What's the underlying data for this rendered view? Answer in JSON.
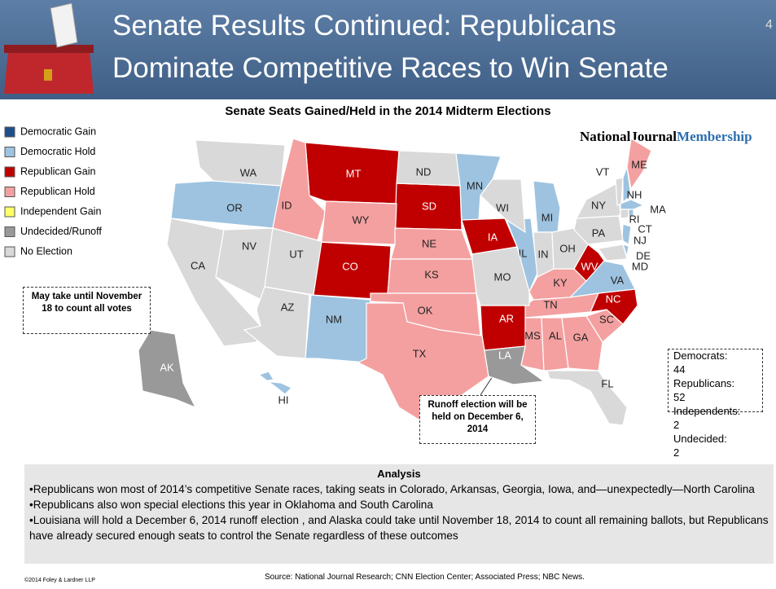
{
  "header": {
    "title_lines": [
      "Senate Results Continued: Republicans",
      "Dominate Competitive Races to Win Senate"
    ],
    "page_number": "4"
  },
  "map": {
    "title": "Senate Seats Gained/Held in the 2014 Midterm Elections",
    "logo": {
      "main": "NationalJournal",
      "accent": "Membership"
    },
    "legend": [
      {
        "name": "Democratic Gain",
        "color": "#1f4e8c",
        "states": []
      },
      {
        "name": "Democratic Hold",
        "color": "#9dc3e0",
        "states": [
          "OR",
          "MN",
          "MI",
          "IL",
          "NM",
          "VA",
          "NJ",
          "NH",
          "MA",
          "RI",
          "DE",
          "HI"
        ]
      },
      {
        "name": "Republican Gain",
        "color": "#c00000",
        "states": [
          "MT",
          "SD",
          "IA",
          "CO",
          "AR",
          "WV",
          "NC"
        ]
      },
      {
        "name": "Republican Hold",
        "color": "#f4a0a0",
        "states": [
          "ID",
          "WY",
          "NE",
          "KS",
          "OK",
          "TX",
          "KY",
          "TN",
          "MS",
          "AL",
          "GA",
          "SC",
          "ME"
        ]
      },
      {
        "name": "Independent Gain",
        "color": "#ffff66",
        "states": []
      },
      {
        "name": "Undecided/Runoff",
        "color": "#999999",
        "states": [
          "AK",
          "LA"
        ]
      },
      {
        "name": "No Election",
        "color": "#d9d9d9",
        "states": [
          "WA",
          "CA",
          "NV",
          "UT",
          "AZ",
          "ND",
          "WI",
          "MO",
          "IN",
          "OH",
          "PA",
          "NY",
          "VT",
          "CT",
          "FL",
          "MD"
        ]
      }
    ],
    "notes": {
      "alaska": "May take until November 18 to count all votes",
      "louisiana": "Runoff election will be held on December 6, 2014"
    },
    "totals": [
      {
        "label": "Democrats:",
        "value": 44
      },
      {
        "label": "Republicans:",
        "value": 52
      },
      {
        "label": "Independents:",
        "value": 2
      },
      {
        "label": "Undecided:",
        "value": 2
      }
    ]
  },
  "analysis": {
    "title": "Analysis",
    "bullets": [
      "•Republicans won most of 2014’s competitive Senate races, taking seats in Colorado, Arkansas, Georgia, Iowa, and—unexpectedly—North Carolina",
      "•Republicans also won special elections this year in Oklahoma and South Carolina",
      "•Louisiana will hold a December 6, 2014 runoff election , and Alaska could take until November 18, 2014 to count all remaining ballots, but Republicans have already secured enough seats to control the Senate regardless of these outcomes"
    ]
  },
  "footer": {
    "copyright": "©2014 Foley & Lardner LLP",
    "source": "Source: National Journal Research; CNN Election Center; Associated Press; NBC News."
  }
}
